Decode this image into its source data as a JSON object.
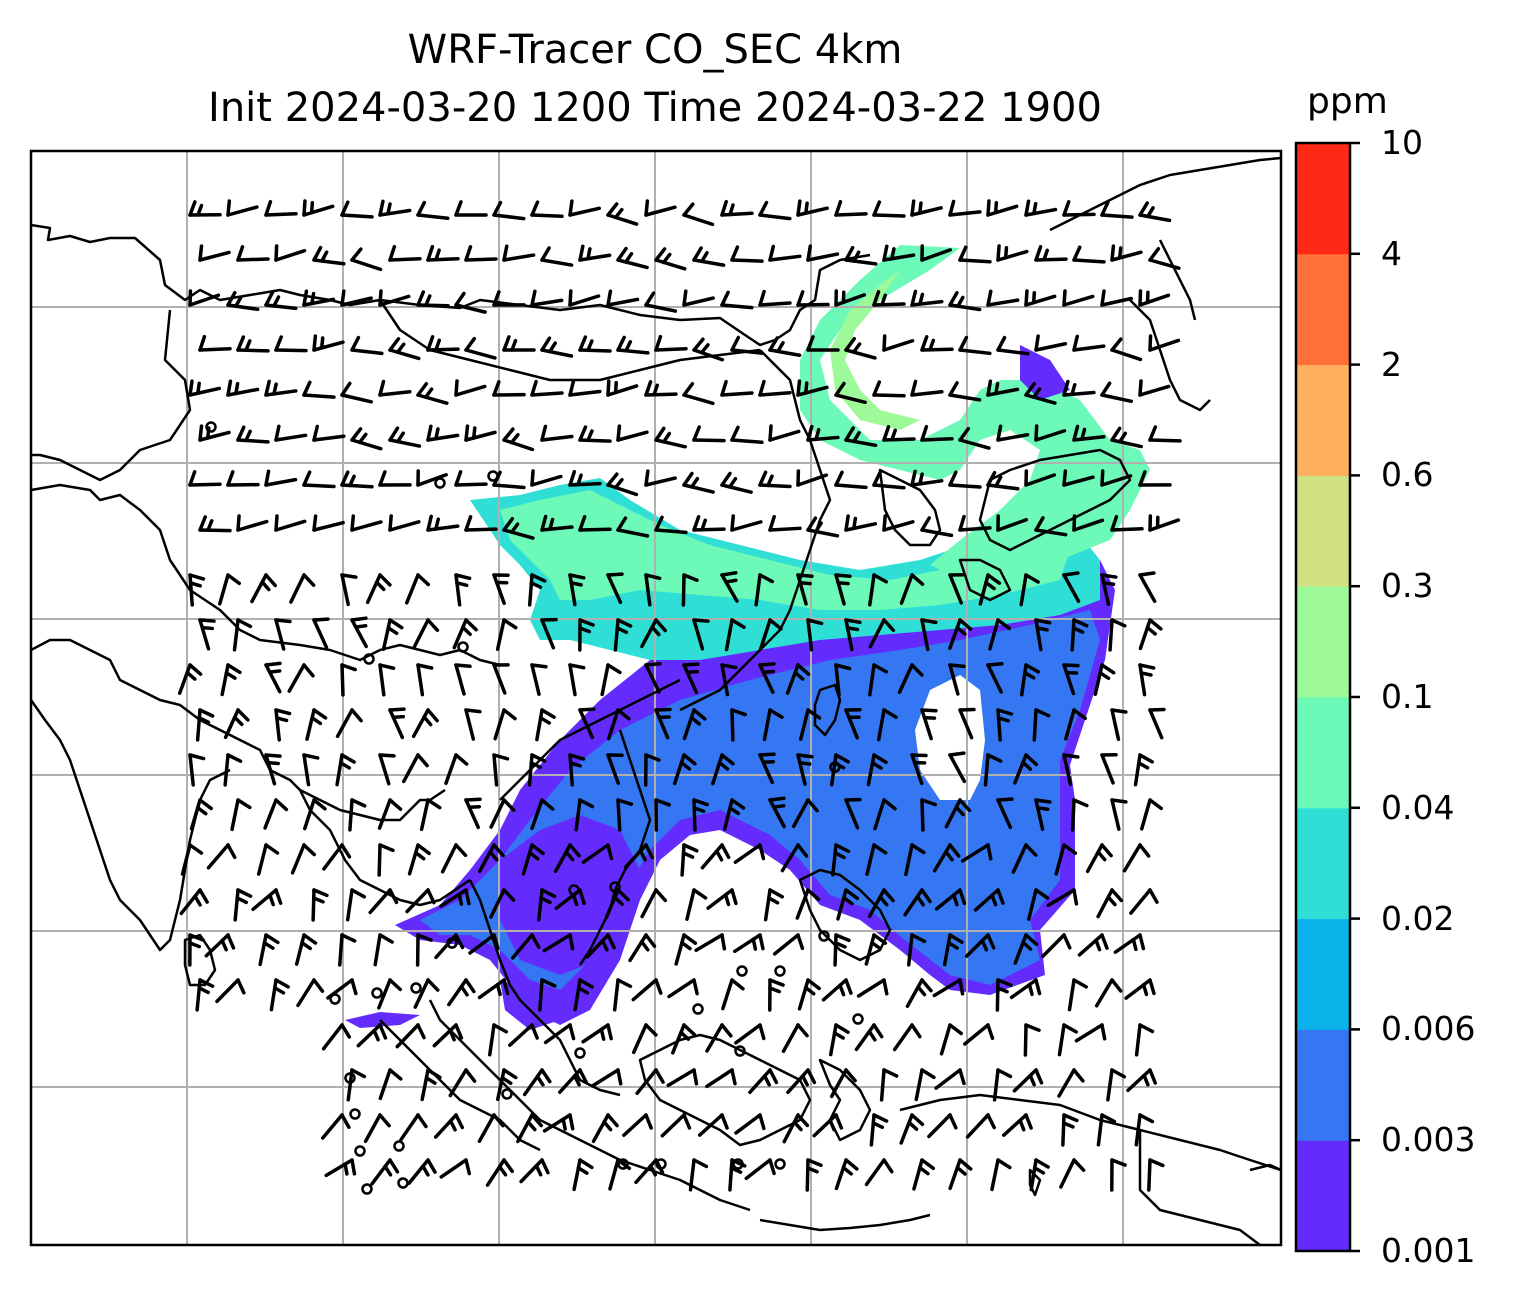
{
  "title_line1": "WRF-Tracer CO_SEC 4km",
  "title_line2": "Init 2024-03-20 1200 Time 2024-03-22 1900",
  "colorbar": {
    "unit": "ppm",
    "levels": [
      "0.001",
      "0.003",
      "0.006",
      "0.02",
      "0.04",
      "0.1",
      "0.3",
      "0.6",
      "2",
      "4",
      "10"
    ],
    "colors": [
      "#632cfc",
      "#3577f3",
      "#0bb2e9",
      "#2fdfd6",
      "#6dfab9",
      "#9efa98",
      "#cfe183",
      "#ffb05f",
      "#ff7138",
      "#ff2917"
    ]
  },
  "map": {
    "gridlines": true,
    "grid_color": "#b0b0b0",
    "background": "#ffffff",
    "coastline_color": "#000000",
    "wind_barb_color": "#000000"
  }
}
